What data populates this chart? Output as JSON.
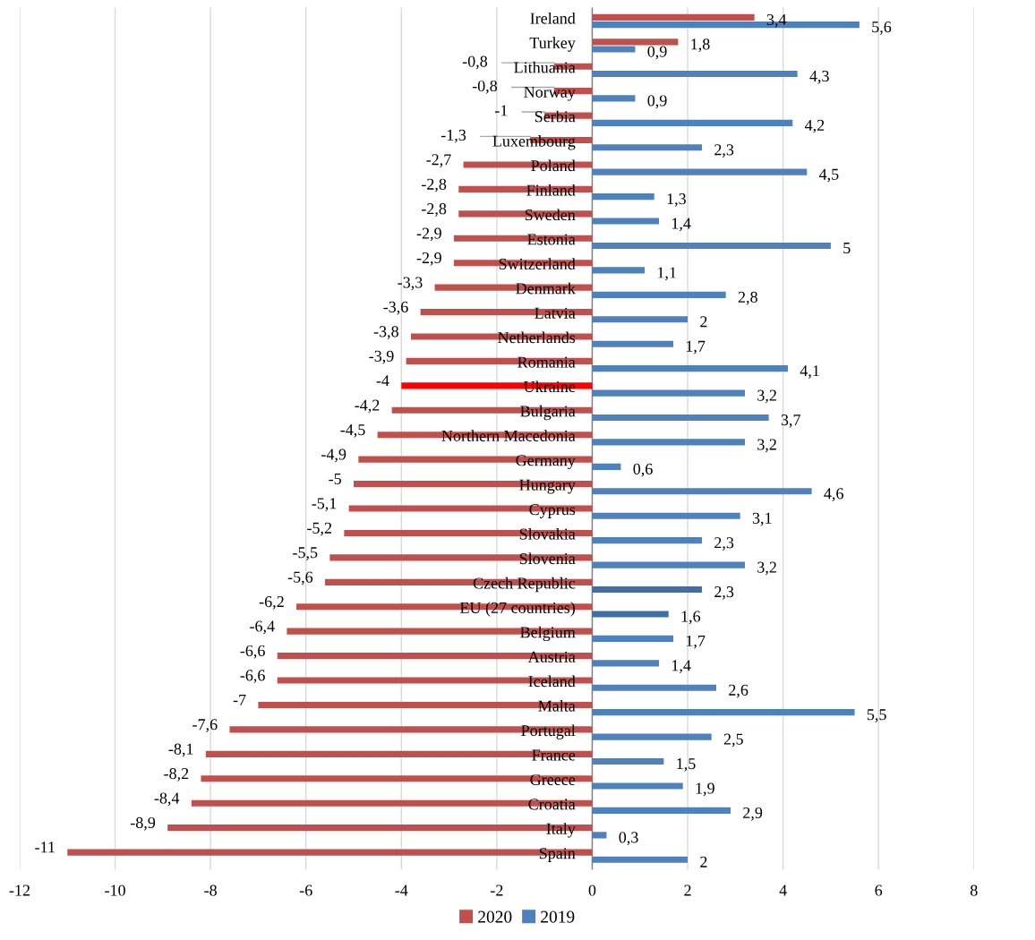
{
  "chart_data": {
    "type": "bar",
    "orientation": "horizontal",
    "categories": [
      "Ireland",
      "Turkey",
      "Lithuania",
      "Norway",
      "Serbia",
      "Luxembourg",
      "Poland",
      "Finland",
      "Sweden",
      "Estonia",
      "Switzerland",
      "Denmark",
      "Latvia",
      "Netherlands",
      "Romania",
      "Ukraine",
      "Bulgaria",
      "Northern Macedonia",
      "Germany",
      "Hungary",
      "Cyprus",
      "Slovakia",
      "Slovenia",
      "Czech Republic",
      "EU (27 countries)",
      "Belgium",
      "Austria",
      "Iceland",
      "Malta",
      "Portugal",
      "France",
      "Greece",
      "Croatia",
      "Italy",
      "Spain"
    ],
    "series": [
      {
        "name": "2020",
        "color": "#c0504d",
        "colors": [
          "#c0504d",
          "#c0504d",
          "#c0504d",
          "#c0504d",
          "#c0504d",
          "#c0504d",
          "#c0504d",
          "#c0504d",
          "#c0504d",
          "#c0504d",
          "#c0504d",
          "#c0504d",
          "#c0504d",
          "#c0504d",
          "#c0504d",
          "#ff0000",
          "#c0504d",
          "#c0504d",
          "#c0504d",
          "#c0504d",
          "#c0504d",
          "#c0504d",
          "#c0504d",
          "#c0504d",
          "#c0504d",
          "#c0504d",
          "#c0504d",
          "#c0504d",
          "#c0504d",
          "#c0504d",
          "#c0504d",
          "#c0504d",
          "#c0504d",
          "#c0504d",
          "#c0504d"
        ],
        "values": [
          3.4,
          1.8,
          -0.8,
          -0.8,
          -1,
          -1.3,
          -2.7,
          -2.8,
          -2.8,
          -2.9,
          -2.9,
          -3.3,
          -3.6,
          -3.8,
          -3.9,
          -4,
          -4.2,
          -4.5,
          -4.9,
          -5,
          -5.1,
          -5.2,
          -5.5,
          -5.6,
          -6.2,
          -6.4,
          -6.6,
          -6.6,
          -7,
          -7.6,
          -8.1,
          -8.2,
          -8.4,
          -8.9,
          -11
        ],
        "value_labels": [
          "3,4",
          "1,8",
          "-0,8",
          "-0,8",
          "-1",
          "-1,3",
          "-2,7",
          "-2,8",
          "-2,8",
          "-2,9",
          "-2,9",
          "-3,3",
          "-3,6",
          "-3,8",
          "-3,9",
          "-4",
          "-4,2",
          "-4,5",
          "-4,9",
          "-5",
          "-5,1",
          "-5,2",
          "-5,5",
          "-5,6",
          "-6,2",
          "-6,4",
          "-6,6",
          "-6,6",
          "-7",
          "-7,6",
          "-8,1",
          "-8,2",
          "-8,4",
          "-8,9",
          "-11"
        ]
      },
      {
        "name": "2019",
        "color": "#4f81bd",
        "colors": [
          "#4f81bd",
          "#4f81bd",
          "#4f81bd",
          "#4f81bd",
          "#4f81bd",
          "#4f81bd",
          "#4f81bd",
          "#4f81bd",
          "#4f81bd",
          "#4f81bd",
          "#4f81bd",
          "#4f81bd",
          "#4f81bd",
          "#4f81bd",
          "#4f81bd",
          "#4f81bd",
          "#4f81bd",
          "#4f81bd",
          "#4f81bd",
          "#4f81bd",
          "#4f81bd",
          "#4f81bd",
          "#4f81bd",
          "#3f6fa8",
          "#3f6fa8",
          "#4f81bd",
          "#4f81bd",
          "#4f81bd",
          "#4f81bd",
          "#4f81bd",
          "#4f81bd",
          "#4f81bd",
          "#4f81bd",
          "#4f81bd",
          "#4f81bd"
        ],
        "values": [
          5.6,
          0.9,
          4.3,
          0.9,
          4.2,
          2.3,
          4.5,
          1.3,
          1.4,
          5,
          1.1,
          2.8,
          2,
          1.7,
          4.1,
          3.2,
          3.7,
          3.2,
          0.6,
          4.6,
          3.1,
          2.3,
          3.2,
          2.3,
          1.6,
          1.7,
          1.4,
          2.6,
          5.5,
          2.5,
          1.5,
          1.9,
          2.9,
          0.3,
          2
        ],
        "value_labels": [
          "5,6",
          "0,9",
          "4,3",
          "0,9",
          "4,2",
          "2,3",
          "4,5",
          "1,3",
          "1,4",
          "5",
          "1,1",
          "2,8",
          "2",
          "1,7",
          "4,1",
          "3,2",
          "3,7",
          "3,2",
          "0,6",
          "4,6",
          "3,1",
          "2,3",
          "3,2",
          "2,3",
          "1,6",
          "1,7",
          "1,4",
          "2,6",
          "5,5",
          "2,5",
          "1,5",
          "1,9",
          "2,9",
          "0,3",
          "2"
        ]
      }
    ],
    "xlim": [
      -12,
      8
    ],
    "xticks": [
      -12,
      -10,
      -8,
      -6,
      -4,
      -2,
      0,
      2,
      4,
      6,
      8
    ],
    "grid": "x",
    "legend": "bottom"
  }
}
